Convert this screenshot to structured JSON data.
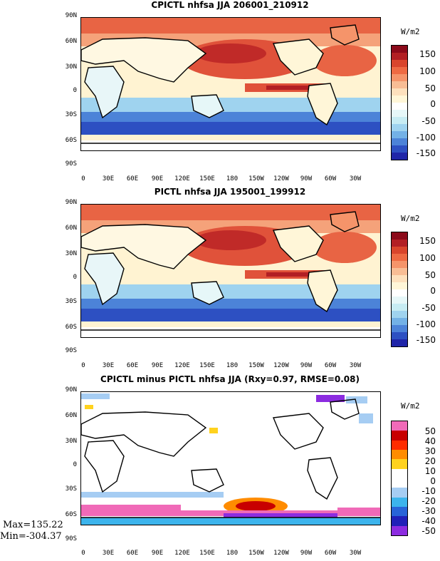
{
  "panels": [
    {
      "title": "CPICTL nhfsa JJA 206001_210912",
      "unit": "W/m2",
      "colorbar": {
        "colors": [
          "#8b0a1a",
          "#b21f24",
          "#d9452c",
          "#ee6a43",
          "#f5946a",
          "#f8bd95",
          "#fde0bd",
          "#fff6d8",
          "#ffffff",
          "#e6f7f8",
          "#c7ecf3",
          "#9fd3ef",
          "#73b1e6",
          "#4c83d8",
          "#2d50c2",
          "#1f25a8"
        ],
        "labels": [
          "150",
          "100",
          "50",
          "0",
          "-50",
          "-100",
          "-150"
        ]
      }
    },
    {
      "title": "PICTL nhfsa JJA 195001_199912",
      "unit": "W/m2",
      "colorbar": {
        "colors": [
          "#8b0a1a",
          "#b21f24",
          "#d9452c",
          "#ee6a43",
          "#f5946a",
          "#f8bd95",
          "#fde0bd",
          "#fff6d8",
          "#ffffff",
          "#e6f7f8",
          "#c7ecf3",
          "#9fd3ef",
          "#73b1e6",
          "#4c83d8",
          "#2d50c2",
          "#1f25a8"
        ],
        "labels": [
          "150",
          "100",
          "50",
          "0",
          "-50",
          "-100",
          "-150"
        ]
      }
    },
    {
      "title": "CPICTL minus PICTL nhfsa JJA (Rxy=0.97, RMSE=0.08)",
      "unit": "W/m2",
      "colorbar": {
        "colors": [
          "#f06ab8",
          "#c80000",
          "#ff2c00",
          "#ff8c00",
          "#ffd21e",
          "#ffffff",
          "#ffffff",
          "#a6cdf3",
          "#3cb4ec",
          "#2864d8",
          "#2020b8",
          "#8c2ce0"
        ],
        "labels": [
          "50",
          "40",
          "30",
          "20",
          "10",
          "0",
          "-10",
          "-20",
          "-30",
          "-40",
          "-50"
        ]
      }
    }
  ],
  "lat_labels": [
    "90N",
    "60N",
    "30N",
    "0",
    "30S",
    "60S",
    "90S"
  ],
  "lon_labels": [
    "0",
    "30E",
    "60E",
    "90E",
    "120E",
    "150E",
    "180",
    "150W",
    "120W",
    "90W",
    "60W",
    "30W"
  ],
  "stats": {
    "max": "Max=135.22",
    "min": "Min=-304.37"
  }
}
